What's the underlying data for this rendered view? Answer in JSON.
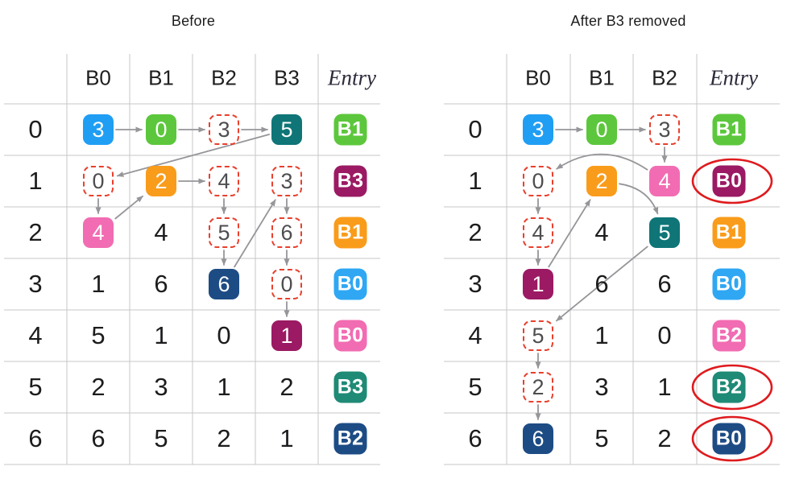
{
  "colors": {
    "blue": "#209EF3",
    "light_blue": "#2FA7F3",
    "green": "#5CC73C",
    "teal": "#0F7577",
    "teal_green": "#1F8A76",
    "orange": "#F99C1B",
    "pink": "#F16CB2",
    "magenta": "#9B1A63",
    "navy": "#1D4C85",
    "dashed_cell_red": "#E7402D",
    "highlight_ellipse_red": "#DE1B1E",
    "arrow_gray": "#96969A",
    "grid_gray": "#C7C7CA"
  },
  "tables": [
    {
      "title": "Before",
      "columns": [
        "B0",
        "B1",
        "B2",
        "B3"
      ],
      "entry_header": "Entry",
      "row_labels": [
        "0",
        "1",
        "2",
        "3",
        "4",
        "5",
        "6"
      ],
      "cells": [
        [
          {
            "v": "3",
            "s": "f",
            "color": "blue"
          },
          {
            "v": "0",
            "s": "f",
            "color": "green"
          },
          {
            "v": "3",
            "s": "d"
          },
          {
            "v": "5",
            "s": "f",
            "color": "teal"
          }
        ],
        [
          {
            "v": "0",
            "s": "d"
          },
          {
            "v": "2",
            "s": "f",
            "color": "orange"
          },
          {
            "v": "4",
            "s": "d"
          },
          {
            "v": "3",
            "s": "d"
          }
        ],
        [
          {
            "v": "4",
            "s": "f",
            "color": "pink"
          },
          {
            "v": "4",
            "s": "p"
          },
          {
            "v": "5",
            "s": "d"
          },
          {
            "v": "6",
            "s": "d"
          }
        ],
        [
          {
            "v": "1",
            "s": "p"
          },
          {
            "v": "6",
            "s": "p"
          },
          {
            "v": "6",
            "s": "f",
            "color": "navy"
          },
          {
            "v": "0",
            "s": "d"
          }
        ],
        [
          {
            "v": "5",
            "s": "p"
          },
          {
            "v": "1",
            "s": "p"
          },
          {
            "v": "0",
            "s": "p"
          },
          {
            "v": "1",
            "s": "f",
            "color": "magenta"
          }
        ],
        [
          {
            "v": "2",
            "s": "p"
          },
          {
            "v": "3",
            "s": "p"
          },
          {
            "v": "1",
            "s": "p"
          },
          {
            "v": "2",
            "s": "p"
          }
        ],
        [
          {
            "v": "6",
            "s": "p"
          },
          {
            "v": "5",
            "s": "p"
          },
          {
            "v": "2",
            "s": "p"
          },
          {
            "v": "1",
            "s": "p"
          }
        ]
      ],
      "entries": [
        {
          "v": "B1",
          "color": "green",
          "circled": false
        },
        {
          "v": "B3",
          "color": "magenta",
          "circled": false
        },
        {
          "v": "B1",
          "color": "orange",
          "circled": false
        },
        {
          "v": "B0",
          "color": "light_blue",
          "circled": false
        },
        {
          "v": "B0",
          "color": "pink",
          "circled": false
        },
        {
          "v": "B3",
          "color": "teal_green",
          "circled": false
        },
        {
          "v": "B2",
          "color": "navy",
          "circled": false
        }
      ],
      "arrows": [
        {
          "f": [
            0,
            0
          ],
          "t": [
            0,
            1
          ]
        },
        {
          "f": [
            0,
            1
          ],
          "t": [
            0,
            2
          ]
        },
        {
          "f": [
            0,
            2
          ],
          "t": [
            0,
            3
          ]
        },
        {
          "f": [
            0,
            3
          ],
          "t": [
            1,
            0
          ]
        },
        {
          "f": [
            1,
            0
          ],
          "t": [
            2,
            0
          ]
        },
        {
          "f": [
            2,
            0
          ],
          "t": [
            1,
            1
          ]
        },
        {
          "f": [
            1,
            1
          ],
          "t": [
            1,
            2
          ]
        },
        {
          "f": [
            1,
            2
          ],
          "t": [
            2,
            2
          ]
        },
        {
          "f": [
            2,
            2
          ],
          "t": [
            3,
            2
          ]
        },
        {
          "f": [
            3,
            2
          ],
          "t": [
            1,
            3
          ]
        },
        {
          "f": [
            1,
            3
          ],
          "t": [
            2,
            3
          ]
        },
        {
          "f": [
            2,
            3
          ],
          "t": [
            3,
            3
          ]
        },
        {
          "f": [
            3,
            3
          ],
          "t": [
            4,
            3
          ]
        }
      ]
    },
    {
      "title": "After B3 removed",
      "columns": [
        "B0",
        "B1",
        "B2"
      ],
      "entry_header": "Entry",
      "row_labels": [
        "0",
        "1",
        "2",
        "3",
        "4",
        "5",
        "6"
      ],
      "cells": [
        [
          {
            "v": "3",
            "s": "f",
            "color": "blue"
          },
          {
            "v": "0",
            "s": "f",
            "color": "green"
          },
          {
            "v": "3",
            "s": "d"
          }
        ],
        [
          {
            "v": "0",
            "s": "d"
          },
          {
            "v": "2",
            "s": "f",
            "color": "orange"
          },
          {
            "v": "4",
            "s": "f",
            "color": "pink"
          }
        ],
        [
          {
            "v": "4",
            "s": "d"
          },
          {
            "v": "4",
            "s": "p"
          },
          {
            "v": "5",
            "s": "f",
            "color": "teal"
          }
        ],
        [
          {
            "v": "1",
            "s": "f",
            "color": "magenta"
          },
          {
            "v": "6",
            "s": "p"
          },
          {
            "v": "6",
            "s": "p"
          }
        ],
        [
          {
            "v": "5",
            "s": "d"
          },
          {
            "v": "1",
            "s": "p"
          },
          {
            "v": "0",
            "s": "p"
          }
        ],
        [
          {
            "v": "2",
            "s": "d"
          },
          {
            "v": "3",
            "s": "p"
          },
          {
            "v": "1",
            "s": "p"
          }
        ],
        [
          {
            "v": "6",
            "s": "f",
            "color": "navy"
          },
          {
            "v": "5",
            "s": "p"
          },
          {
            "v": "2",
            "s": "p"
          }
        ]
      ],
      "entries": [
        {
          "v": "B1",
          "color": "green",
          "circled": false
        },
        {
          "v": "B0",
          "color": "magenta",
          "circled": true
        },
        {
          "v": "B1",
          "color": "orange",
          "circled": false
        },
        {
          "v": "B0",
          "color": "light_blue",
          "circled": false
        },
        {
          "v": "B2",
          "color": "pink",
          "circled": false
        },
        {
          "v": "B2",
          "color": "teal_green",
          "circled": true
        },
        {
          "v": "B0",
          "color": "navy",
          "circled": true
        }
      ],
      "arrows": [
        {
          "f": [
            0,
            0
          ],
          "t": [
            0,
            1
          ]
        },
        {
          "f": [
            0,
            1
          ],
          "t": [
            0,
            2
          ]
        },
        {
          "f": [
            0,
            2
          ],
          "t": [
            1,
            2
          ]
        },
        {
          "f": [
            1,
            2
          ],
          "t": [
            1,
            0
          ],
          "curve": 52
        },
        {
          "f": [
            1,
            0
          ],
          "t": [
            2,
            0
          ]
        },
        {
          "f": [
            2,
            0
          ],
          "t": [
            3,
            0
          ]
        },
        {
          "f": [
            3,
            0
          ],
          "t": [
            1,
            1
          ]
        },
        {
          "f": [
            1,
            1
          ],
          "t": [
            2,
            2
          ],
          "curve": -30
        },
        {
          "f": [
            2,
            2
          ],
          "t": [
            4,
            0
          ]
        },
        {
          "f": [
            4,
            0
          ],
          "t": [
            5,
            0
          ]
        },
        {
          "f": [
            5,
            0
          ],
          "t": [
            6,
            0
          ]
        }
      ]
    }
  ]
}
